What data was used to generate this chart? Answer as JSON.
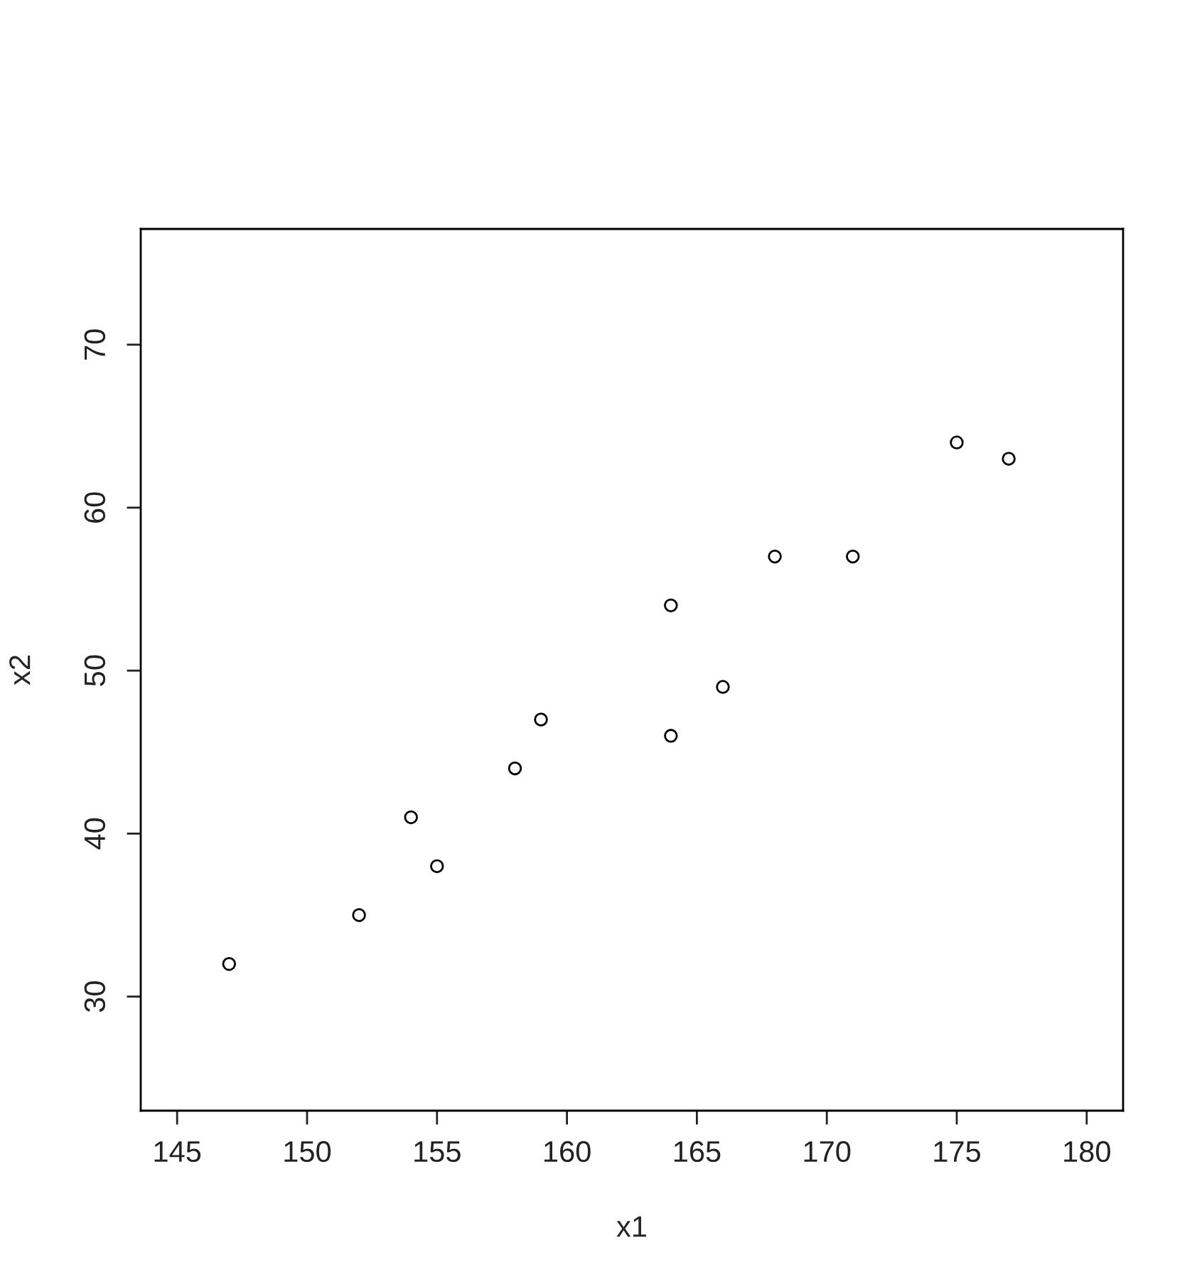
{
  "chart_data": {
    "type": "scatter",
    "xlabel": "x1",
    "ylabel": "x2",
    "x": [
      147,
      152,
      154,
      155,
      158,
      159,
      164,
      164,
      166,
      168,
      171,
      175,
      177
    ],
    "values": [
      32,
      35,
      41,
      38,
      44,
      47,
      54,
      46,
      49,
      57,
      57,
      64,
      63
    ],
    "color": "#000000",
    "marker": "circle",
    "xlim": [
      143.6,
      181.4
    ],
    "ylim": [
      23.0,
      77.1
    ],
    "xticks": [
      145,
      150,
      155,
      160,
      165,
      170,
      175,
      180
    ],
    "yticks": [
      30,
      40,
      50,
      60,
      70
    ],
    "grid": false,
    "legend": false
  }
}
